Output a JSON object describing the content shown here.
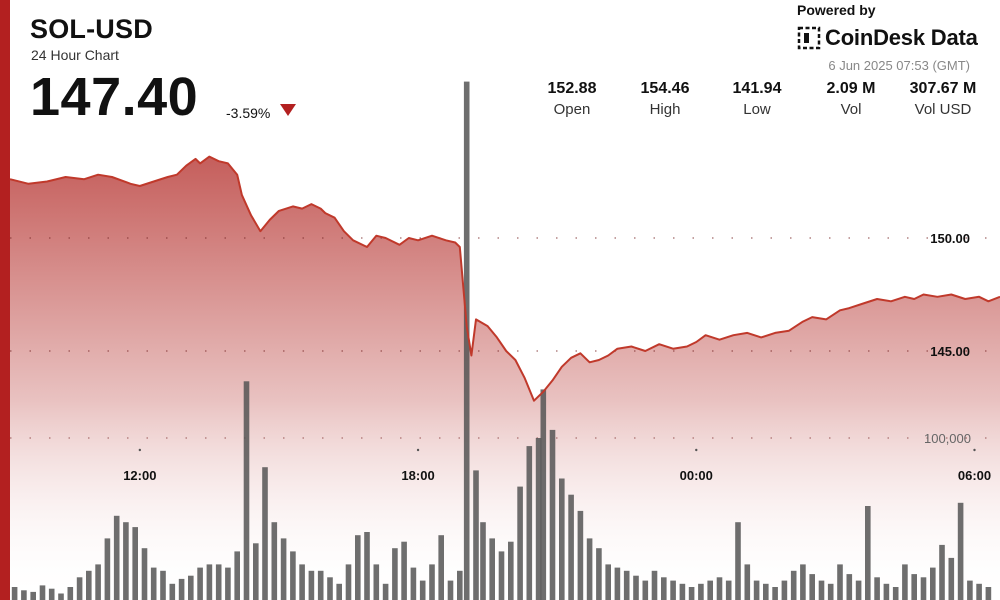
{
  "header": {
    "ticker": "SOL-USD",
    "subtitle": "24 Hour Chart",
    "price": "147.40",
    "change": "-3.59%",
    "powered_by": "Powered by",
    "brand": "CoinDesk Data",
    "timestamp": "6 Jun 2025 07:53 (GMT)"
  },
  "stats": [
    {
      "value": "152.88",
      "label": "Open"
    },
    {
      "value": "154.46",
      "label": "High"
    },
    {
      "value": "141.94",
      "label": "Low"
    },
    {
      "value": "2.09 M",
      "label": "Vol"
    },
    {
      "value": "307.67 M",
      "label": "Vol USD"
    }
  ],
  "colors": {
    "accent": "#b32020",
    "line": "#c0392b",
    "fill_top": "#c0504d",
    "volume": "#555555"
  },
  "chart_data": {
    "type": "area",
    "x_ticks": [
      "12:00",
      "18:00",
      "00:00",
      "06:00"
    ],
    "y_ticks": [
      "150.00",
      "145.00"
    ],
    "volume_tick": "100,000",
    "grid": "dotted",
    "price": [
      [
        9.2,
        152.6
      ],
      [
        9.6,
        152.4
      ],
      [
        10.0,
        152.5
      ],
      [
        10.4,
        152.7
      ],
      [
        10.8,
        152.6
      ],
      [
        11.1,
        152.8
      ],
      [
        11.4,
        152.7
      ],
      [
        11.8,
        152.4
      ],
      [
        12.0,
        152.3
      ],
      [
        12.3,
        152.5
      ],
      [
        12.6,
        152.7
      ],
      [
        12.8,
        152.8
      ],
      [
        13.0,
        153.2
      ],
      [
        13.2,
        153.5
      ],
      [
        13.3,
        153.3
      ],
      [
        13.5,
        153.6
      ],
      [
        13.7,
        153.4
      ],
      [
        13.9,
        153.3
      ],
      [
        14.1,
        152.8
      ],
      [
        14.2,
        151.9
      ],
      [
        14.4,
        151.0
      ],
      [
        14.6,
        150.3
      ],
      [
        14.8,
        150.8
      ],
      [
        15.0,
        151.2
      ],
      [
        15.3,
        151.4
      ],
      [
        15.5,
        151.3
      ],
      [
        15.7,
        151.5
      ],
      [
        15.9,
        151.3
      ],
      [
        16.0,
        151.1
      ],
      [
        16.2,
        150.9
      ],
      [
        16.4,
        150.3
      ],
      [
        16.6,
        149.9
      ],
      [
        16.9,
        149.6
      ],
      [
        17.1,
        150.1
      ],
      [
        17.3,
        150.0
      ],
      [
        17.6,
        149.7
      ],
      [
        17.8,
        150.0
      ],
      [
        18.0,
        149.9
      ],
      [
        18.3,
        150.1
      ],
      [
        18.6,
        149.9
      ],
      [
        18.8,
        149.8
      ],
      [
        18.9,
        149.6
      ],
      [
        19.05,
        146.1
      ],
      [
        19.15,
        144.8
      ],
      [
        19.25,
        146.4
      ],
      [
        19.5,
        146.1
      ],
      [
        19.7,
        145.6
      ],
      [
        19.9,
        145.0
      ],
      [
        20.1,
        144.6
      ],
      [
        20.3,
        143.8
      ],
      [
        20.5,
        142.8
      ],
      [
        20.7,
        143.2
      ],
      [
        20.9,
        143.7
      ],
      [
        21.1,
        144.3
      ],
      [
        21.3,
        144.7
      ],
      [
        21.5,
        144.9
      ],
      [
        21.7,
        144.5
      ],
      [
        21.9,
        144.6
      ],
      [
        22.1,
        144.8
      ],
      [
        22.3,
        145.1
      ],
      [
        22.6,
        145.2
      ],
      [
        22.9,
        145.0
      ],
      [
        23.2,
        145.3
      ],
      [
        23.5,
        145.1
      ],
      [
        23.8,
        145.2
      ],
      [
        24.0,
        145.4
      ],
      [
        24.2,
        145.7
      ],
      [
        24.5,
        145.5
      ],
      [
        24.8,
        145.7
      ],
      [
        25.1,
        145.8
      ],
      [
        25.4,
        145.6
      ],
      [
        25.7,
        145.8
      ],
      [
        26.0,
        145.9
      ],
      [
        26.3,
        146.3
      ],
      [
        26.5,
        146.5
      ],
      [
        26.8,
        146.4
      ],
      [
        27.1,
        146.8
      ],
      [
        27.3,
        146.9
      ],
      [
        27.6,
        147.1
      ],
      [
        27.9,
        147.3
      ],
      [
        28.2,
        147.2
      ],
      [
        28.5,
        147.4
      ],
      [
        28.7,
        147.3
      ],
      [
        28.9,
        147.5
      ],
      [
        29.2,
        147.4
      ],
      [
        29.5,
        147.5
      ],
      [
        29.8,
        147.3
      ],
      [
        30.1,
        147.4
      ],
      [
        30.3,
        147.2
      ],
      [
        30.55,
        147.4
      ]
    ],
    "volume": [
      [
        9.3,
        8000
      ],
      [
        9.5,
        6000
      ],
      [
        9.7,
        5000
      ],
      [
        9.9,
        9000
      ],
      [
        10.1,
        7000
      ],
      [
        10.3,
        4000
      ],
      [
        10.5,
        8000
      ],
      [
        10.7,
        14000
      ],
      [
        10.9,
        18000
      ],
      [
        11.1,
        22000
      ],
      [
        11.3,
        38000
      ],
      [
        11.5,
        52000
      ],
      [
        11.7,
        48000
      ],
      [
        11.9,
        45000
      ],
      [
        12.1,
        32000
      ],
      [
        12.3,
        20000
      ],
      [
        12.5,
        18000
      ],
      [
        12.7,
        10000
      ],
      [
        12.9,
        13000
      ],
      [
        13.1,
        15000
      ],
      [
        13.3,
        20000
      ],
      [
        13.5,
        22000
      ],
      [
        13.7,
        22000
      ],
      [
        13.9,
        20000
      ],
      [
        14.1,
        30000
      ],
      [
        14.3,
        135000
      ],
      [
        14.5,
        35000
      ],
      [
        14.7,
        82000
      ],
      [
        14.9,
        48000
      ],
      [
        15.1,
        38000
      ],
      [
        15.3,
        30000
      ],
      [
        15.5,
        22000
      ],
      [
        15.7,
        18000
      ],
      [
        15.9,
        18000
      ],
      [
        16.1,
        14000
      ],
      [
        16.3,
        10000
      ],
      [
        16.5,
        22000
      ],
      [
        16.7,
        40000
      ],
      [
        16.9,
        42000
      ],
      [
        17.1,
        22000
      ],
      [
        17.3,
        10000
      ],
      [
        17.5,
        32000
      ],
      [
        17.7,
        36000
      ],
      [
        17.9,
        20000
      ],
      [
        18.1,
        12000
      ],
      [
        18.3,
        22000
      ],
      [
        18.5,
        40000
      ],
      [
        18.7,
        12000
      ],
      [
        18.9,
        18000
      ],
      [
        19.05,
        320000
      ],
      [
        19.25,
        80000
      ],
      [
        19.4,
        48000
      ],
      [
        19.6,
        38000
      ],
      [
        19.8,
        30000
      ],
      [
        20.0,
        36000
      ],
      [
        20.2,
        70000
      ],
      [
        20.4,
        95000
      ],
      [
        20.6,
        100000
      ],
      [
        20.7,
        130000
      ],
      [
        20.9,
        105000
      ],
      [
        21.1,
        75000
      ],
      [
        21.3,
        65000
      ],
      [
        21.5,
        55000
      ],
      [
        21.7,
        38000
      ],
      [
        21.9,
        32000
      ],
      [
        22.1,
        22000
      ],
      [
        22.3,
        20000
      ],
      [
        22.5,
        18000
      ],
      [
        22.7,
        15000
      ],
      [
        22.9,
        12000
      ],
      [
        23.1,
        18000
      ],
      [
        23.3,
        14000
      ],
      [
        23.5,
        12000
      ],
      [
        23.7,
        10000
      ],
      [
        23.9,
        8000
      ],
      [
        24.1,
        10000
      ],
      [
        24.3,
        12000
      ],
      [
        24.5,
        14000
      ],
      [
        24.7,
        12000
      ],
      [
        24.9,
        48000
      ],
      [
        25.1,
        22000
      ],
      [
        25.3,
        12000
      ],
      [
        25.5,
        10000
      ],
      [
        25.7,
        8000
      ],
      [
        25.9,
        12000
      ],
      [
        26.1,
        18000
      ],
      [
        26.3,
        22000
      ],
      [
        26.5,
        16000
      ],
      [
        26.7,
        12000
      ],
      [
        26.9,
        10000
      ],
      [
        27.1,
        22000
      ],
      [
        27.3,
        16000
      ],
      [
        27.5,
        12000
      ],
      [
        27.7,
        58000
      ],
      [
        27.9,
        14000
      ],
      [
        28.1,
        10000
      ],
      [
        28.3,
        8000
      ],
      [
        28.5,
        22000
      ],
      [
        28.7,
        16000
      ],
      [
        28.9,
        14000
      ],
      [
        29.1,
        20000
      ],
      [
        29.3,
        34000
      ],
      [
        29.5,
        26000
      ],
      [
        29.7,
        60000
      ],
      [
        29.9,
        12000
      ],
      [
        30.1,
        10000
      ],
      [
        30.3,
        8000
      ]
    ]
  }
}
